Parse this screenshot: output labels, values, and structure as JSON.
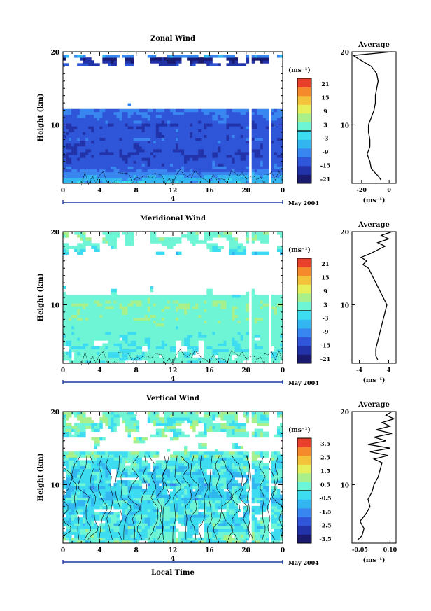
{
  "chart_data": [
    {
      "type": "heatmap",
      "title": "Zonal Wind",
      "ylabel": "Height (km)",
      "xlim": [
        0,
        24
      ],
      "ylim": [
        2,
        20
      ],
      "x_ticks": [
        "0",
        "4",
        "8",
        "12",
        "16",
        "20",
        "0"
      ],
      "y_ticks": [
        "20",
        "10"
      ],
      "date_marker": "4",
      "date_label": "May 2004",
      "colorbar_unit": "(ms⁻¹)",
      "colorbar_ticks": [
        "21",
        "15",
        "9",
        "3",
        "-3",
        "-9",
        "-15",
        "-21"
      ],
      "colorbar_range": [
        -24,
        24
      ],
      "field": {
        "pattern": "zonal",
        "profile": [
          [
            2.5,
            -6
          ],
          [
            4,
            -13
          ],
          [
            6,
            -16
          ],
          [
            8,
            -14
          ],
          [
            10,
            -15
          ],
          [
            12,
            -11
          ],
          [
            14,
            -10
          ],
          [
            15,
            -9
          ],
          [
            16,
            -8
          ],
          [
            17,
            -9
          ],
          [
            18,
            -13
          ],
          [
            19,
            -22
          ],
          [
            19.5,
            -6
          ]
        ]
      },
      "average_panel": {
        "title": "Average",
        "xlabel": "(ms⁻¹)",
        "x_ticks": [
          "-20",
          "0"
        ],
        "xlim": [
          -27,
          5
        ],
        "profile_height": [
          2.5,
          3,
          4,
          5,
          6,
          7,
          8,
          9,
          10,
          11,
          12,
          13,
          14,
          15,
          16,
          17,
          18,
          19,
          19.5,
          20
        ],
        "profile_value": [
          -6,
          -8,
          -13,
          -14,
          -16,
          -14,
          -14,
          -15,
          -15,
          -13,
          -11,
          -10,
          -10,
          -9,
          -8,
          -9,
          -13,
          -22,
          -26,
          2
        ]
      }
    },
    {
      "type": "heatmap",
      "title": "Meridional Wind",
      "ylabel": "Height (km)",
      "xlim": [
        0,
        24
      ],
      "ylim": [
        2,
        20
      ],
      "x_ticks": [
        "0",
        "4",
        "8",
        "12",
        "16",
        "20",
        "0"
      ],
      "y_ticks": [
        "20",
        "10"
      ],
      "date_marker": "4",
      "date_label": "May 2004",
      "colorbar_unit": "(ms⁻¹)",
      "colorbar_ticks": [
        "21",
        "15",
        "9",
        "3",
        "-3",
        "-9",
        "-15",
        "-21"
      ],
      "colorbar_range": [
        -24,
        24
      ],
      "field": {
        "pattern": "meridional",
        "profile": [
          [
            2.5,
            1
          ],
          [
            4,
            0.5
          ],
          [
            6,
            1.5
          ],
          [
            8,
            2.5
          ],
          [
            10,
            3.5
          ],
          [
            11,
            2
          ],
          [
            12,
            1
          ],
          [
            14,
            -1
          ],
          [
            15,
            -2
          ],
          [
            16,
            -1
          ],
          [
            17,
            -3
          ],
          [
            18,
            2
          ],
          [
            19,
            3
          ]
        ]
      },
      "average_panel": {
        "title": "Average",
        "xlabel": "(ms⁻¹)",
        "x_ticks": [
          "-4",
          "4"
        ],
        "xlim": [
          -6,
          6
        ],
        "profile_height": [
          2.5,
          3,
          4,
          5,
          6,
          7,
          8,
          9,
          10,
          11,
          12,
          13,
          14,
          15,
          15.5,
          16,
          16.5,
          17,
          17.5,
          18,
          18.5,
          19,
          19.5,
          20
        ],
        "profile_value": [
          1,
          0.5,
          0.5,
          1,
          1.5,
          2,
          2.5,
          3,
          3.5,
          2.5,
          1.5,
          0.5,
          -0.5,
          -1.5,
          -3,
          -2,
          -3.5,
          -1,
          1,
          3,
          1,
          4,
          2,
          5
        ]
      }
    },
    {
      "type": "heatmap",
      "title": "Vertical Wind",
      "ylabel": "Height (km)",
      "xlabel": "Local Time",
      "xlim": [
        0,
        24
      ],
      "ylim": [
        2,
        20
      ],
      "x_ticks": [
        "0",
        "4",
        "8",
        "12",
        "16",
        "20",
        "0"
      ],
      "y_ticks": [
        "20",
        "10"
      ],
      "date_marker": "4",
      "date_label": "May 2004",
      "colorbar_unit": "(ms⁻¹)",
      "colorbar_ticks": [
        "3.5",
        "2.5",
        "1.5",
        "0.5",
        "-0.5",
        "-1.5",
        "-2.5",
        "-3.5"
      ],
      "colorbar_range": [
        -4,
        4
      ],
      "field": {
        "pattern": "vertical",
        "profile": [
          [
            2.5,
            0.1
          ],
          [
            5,
            -0.2
          ],
          [
            8,
            -0.4
          ],
          [
            10,
            -0.5
          ],
          [
            12,
            -0.3
          ],
          [
            14,
            0.2
          ],
          [
            16,
            0.5
          ],
          [
            17,
            0.3
          ],
          [
            18,
            0.6
          ],
          [
            19,
            0.4
          ]
        ]
      },
      "average_panel": {
        "title": "Average",
        "xlabel": "(ms⁻¹)",
        "x_ticks": [
          "-0.05",
          "0.10"
        ],
        "xlim": [
          -0.09,
          0.13
        ],
        "profile_height": [
          2.5,
          3,
          4,
          5,
          6,
          7,
          8,
          9,
          10,
          11,
          12,
          13,
          13.5,
          14,
          14.5,
          15,
          15.5,
          16,
          16.5,
          17,
          17.5,
          18,
          18.5,
          19,
          19.5,
          20
        ],
        "profile_value": [
          -0.06,
          -0.04,
          -0.03,
          -0.05,
          -0.02,
          0.0,
          -0.01,
          0.01,
          0.02,
          0.04,
          0.05,
          0.06,
          0.02,
          0.09,
          0.0,
          0.1,
          -0.01,
          0.08,
          0.02,
          0.11,
          0.03,
          0.1,
          0.06,
          0.12,
          0.08,
          0.11
        ]
      }
    }
  ],
  "colorscale": [
    "#1a1a6e",
    "#2233aa",
    "#2f55d8",
    "#3a86f0",
    "#33b6f0",
    "#3ddcf0",
    "#6ef5d6",
    "#a8f08c",
    "#e6f05a",
    "#f5c23c",
    "#f58a2c",
    "#e8402a"
  ]
}
